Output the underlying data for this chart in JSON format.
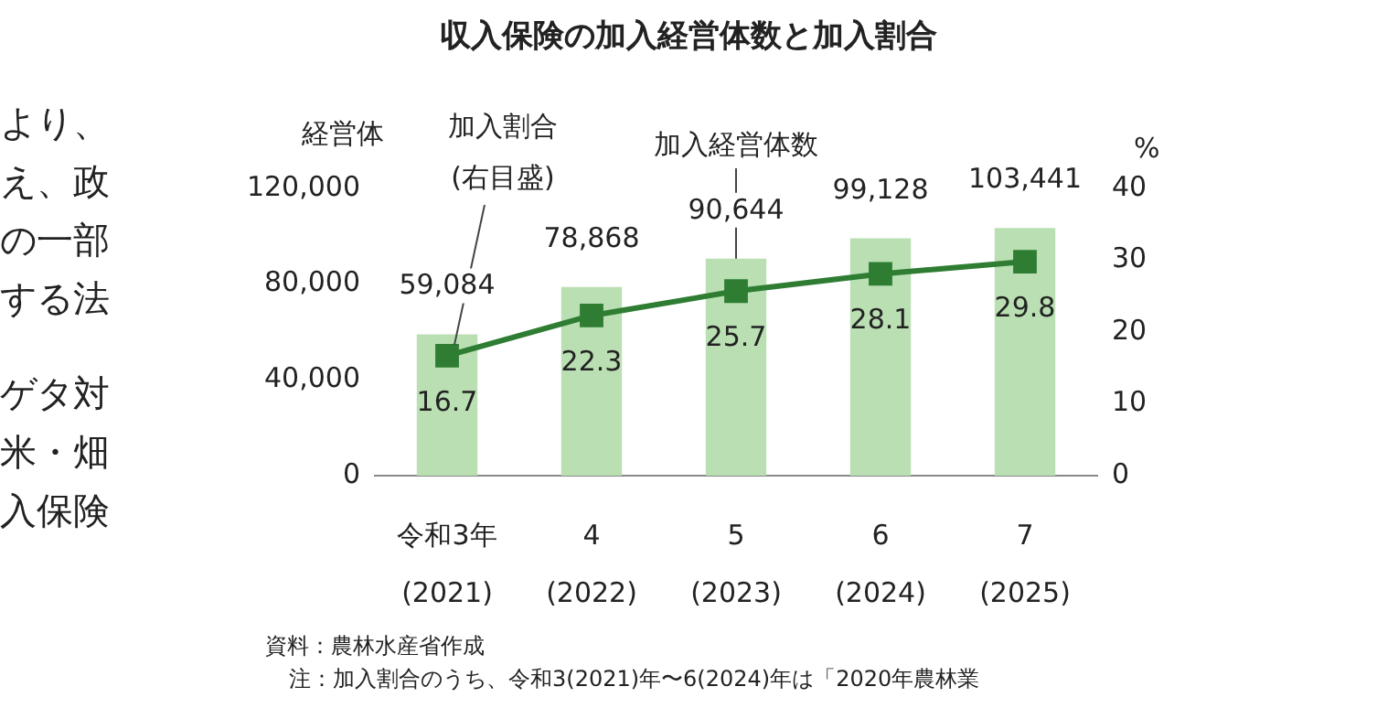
{
  "chart_data": {
    "type": "bar",
    "title": "収入保険の加入経営体数と加入割合",
    "categories": [
      "令和3年\n(2021)",
      "4\n(2022)",
      "5\n(2023)",
      "6\n(2024)",
      "7\n(2025)"
    ],
    "series": [
      {
        "name": "加入経営体数",
        "color": "#b9dfb2",
        "values": [
          59084,
          78868,
          90644,
          99128,
          103441
        ],
        "value_labels": [
          "59,084",
          "78,868",
          "90,644",
          "99,128",
          "103,441"
        ]
      },
      {
        "name": "加入割合\n(右目盛)",
        "type": "line",
        "axis": "y2",
        "color": "#2e7d32",
        "values": [
          16.7,
          22.3,
          25.7,
          28.1,
          29.8
        ]
      }
    ],
    "ylabel": "経営体",
    "y2label": "%",
    "ylim": [
      0,
      120000
    ],
    "yticks": [
      0,
      {
        "value": 40000,
        "label": "40,000"
      },
      {
        "value": 80000,
        "label": "80,000"
      },
      {
        "value": 120000,
        "label": "120,000"
      }
    ],
    "y2lim": [
      0,
      40
    ],
    "y2ticks": [
      0,
      10,
      20,
      30,
      40
    ],
    "data_labels": true,
    "grid": false,
    "legend": false,
    "marker": "square",
    "line_style": "solid",
    "annotations": [
      "より、",
      "え、政",
      "の一部",
      "する法",
      "ゲタ対",
      "米・畑",
      "入保険",
      "資料：農林水産省作成",
      "注：加入割合のうち、令和3(2021)年〜6(2024)年は「2020年農林業"
    ]
  }
}
